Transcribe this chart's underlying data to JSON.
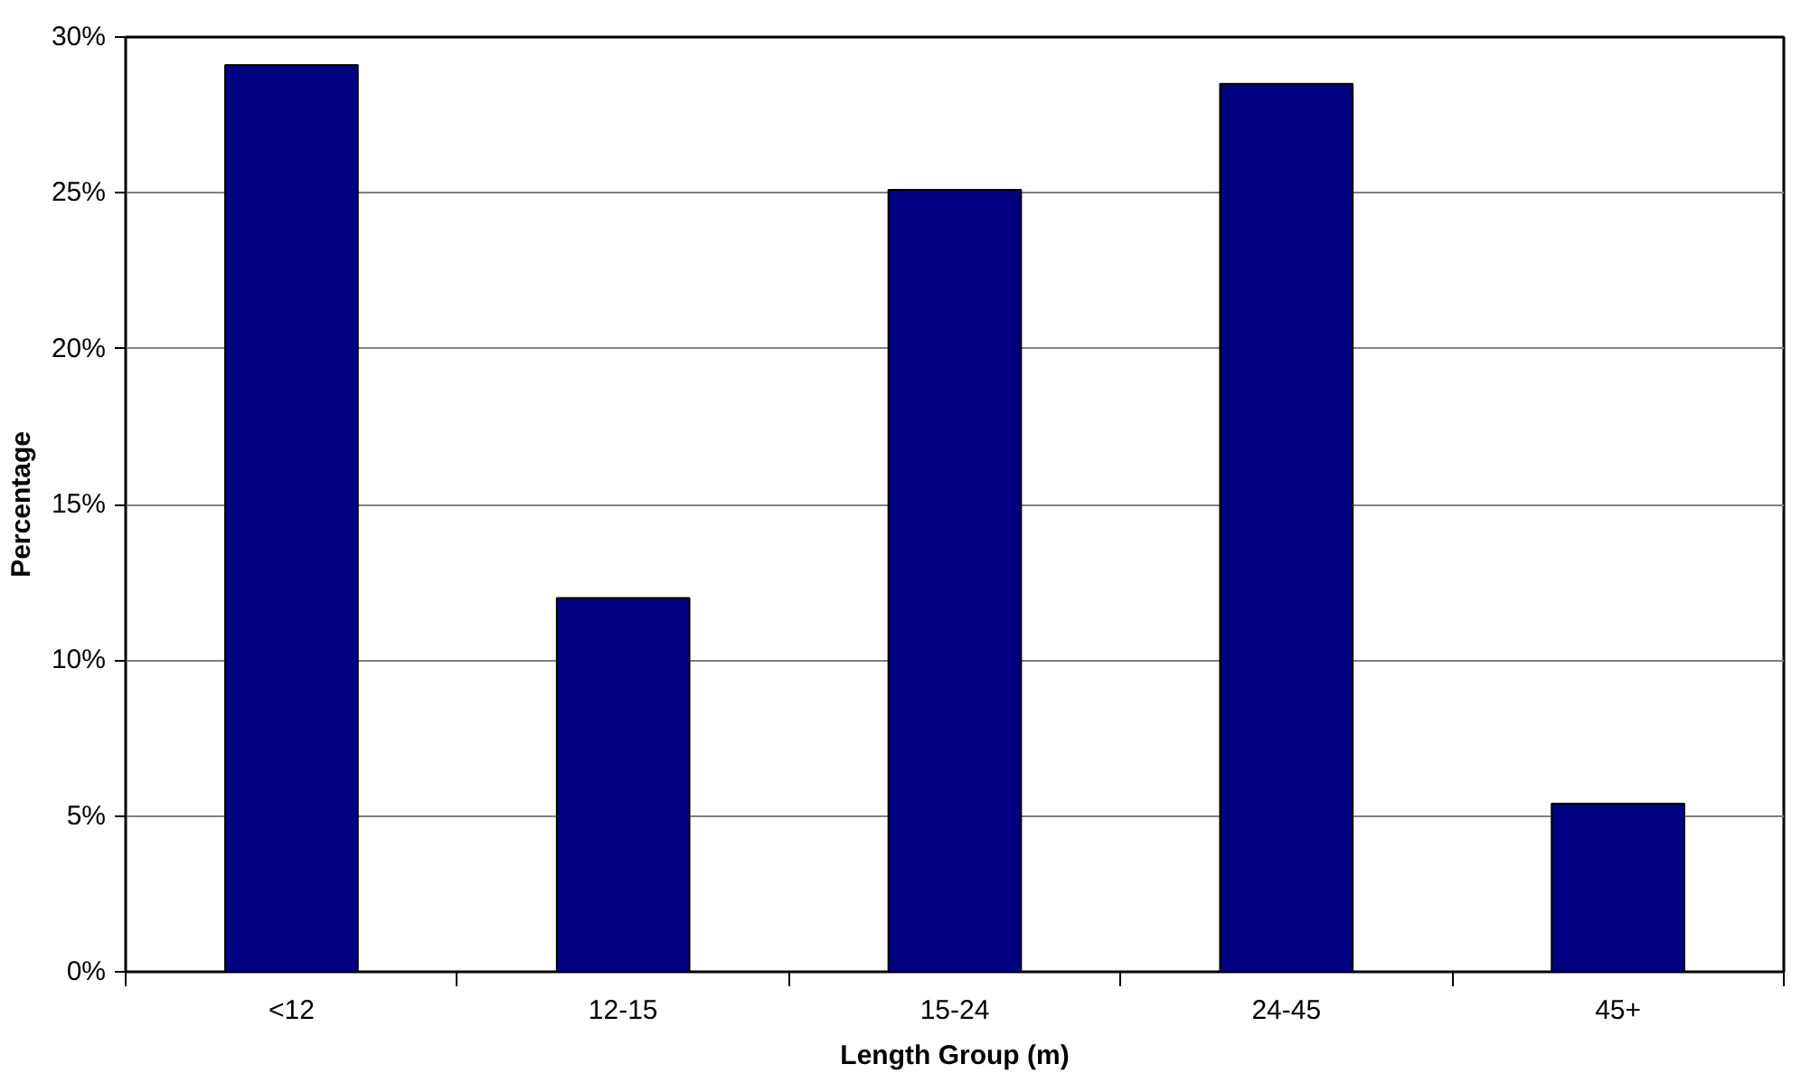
{
  "chart_data": {
    "type": "bar",
    "xlabel": "Length Group (m)",
    "ylabel": "Percentage",
    "categories": [
      "<12",
      "12-15",
      "15-24",
      "24-45",
      "45+"
    ],
    "values": [
      29.1,
      12.0,
      25.1,
      28.5,
      5.4
    ],
    "color": "#000080",
    "ylim": [
      0,
      30
    ],
    "yticks": [
      {
        "value": 0,
        "label": "0%"
      },
      {
        "value": 5,
        "label": "5%"
      },
      {
        "value": 10,
        "label": "10%"
      },
      {
        "value": 15,
        "label": "15%"
      },
      {
        "value": 20,
        "label": "20%"
      },
      {
        "value": 25,
        "label": "25%"
      },
      {
        "value": 30,
        "label": "30%"
      }
    ],
    "grid": "y"
  }
}
